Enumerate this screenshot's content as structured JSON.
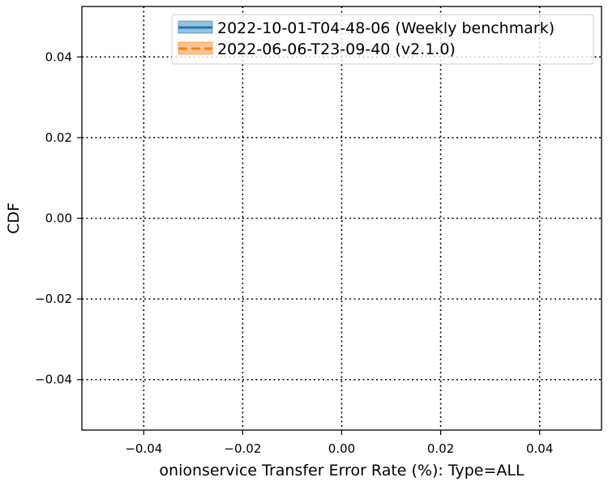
{
  "chart_data": {
    "type": "line",
    "xlabel": "onionservice Transfer Error Rate (%): Type=ALL",
    "ylabel": "CDF",
    "xlim": [
      -0.0525,
      0.0525
    ],
    "ylim": [
      -0.0525,
      0.0525
    ],
    "x_ticks": [
      -0.04,
      -0.02,
      0.0,
      0.02,
      0.04
    ],
    "y_ticks": [
      -0.04,
      -0.02,
      0.0,
      0.02,
      0.04
    ],
    "x_tick_labels": [
      "−0.04",
      "−0.02",
      "0.00",
      "0.02",
      "0.04"
    ],
    "y_tick_labels": [
      "−0.04",
      "−0.02",
      "0.00",
      "0.02",
      "0.04"
    ],
    "grid": true,
    "grid_style": "dotted",
    "legend_position": "top-right",
    "series": [
      {
        "name": "2022-10-01-T04-48-06 (Weekly benchmark)",
        "color": "#1f77b4",
        "line_style": "solid",
        "x": [],
        "y": []
      },
      {
        "name": "2022-06-06-T23-09-40 (v2.1.0)",
        "color": "#ff7f0e",
        "line_style": "dashed",
        "x": [],
        "y": []
      }
    ]
  }
}
